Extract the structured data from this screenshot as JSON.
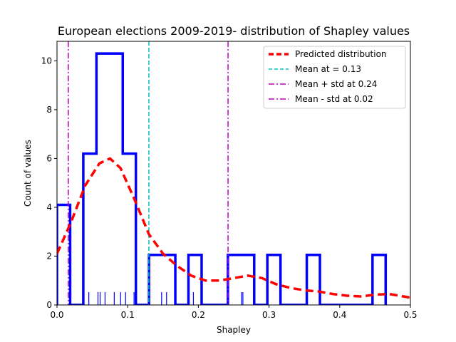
{
  "chart_data": {
    "type": "histogram",
    "title": "European elections 2009-2019- distribution of Shapley values",
    "xlabel": "Shapley",
    "ylabel": "Count of values",
    "xlim": [
      0,
      0.5
    ],
    "ylim": [
      0,
      10.8
    ],
    "xticks": [
      "0.0",
      "0.1",
      "0.2",
      "0.3",
      "0.4",
      "0.5"
    ],
    "yticks": [
      "0",
      "2",
      "4",
      "6",
      "8",
      "10"
    ],
    "histogram": {
      "bin_edges": [
        0.0,
        0.0186,
        0.0372,
        0.0558,
        0.093,
        0.1116,
        0.1302,
        0.1674,
        0.186,
        0.2046,
        0.2418,
        0.279,
        0.2976,
        0.3162,
        0.3534,
        0.372,
        0.4464,
        0.465
      ],
      "counts": [
        4.1,
        0.0,
        6.2,
        10.3,
        6.2,
        0.0,
        2.05,
        0.0,
        2.05,
        0.0,
        2.05,
        0.0,
        2.05,
        0.0,
        2.05,
        0.0,
        2.05
      ],
      "color": "#0000ff"
    },
    "rug": {
      "x": [
        0.045,
        0.058,
        0.061,
        0.068,
        0.081,
        0.09,
        0.097,
        0.109,
        0.148,
        0.155,
        0.193,
        0.261,
        0.263,
        0.298,
        0.372
      ],
      "color": "#0000ff"
    },
    "predicted": {
      "name": "Predicted distribution",
      "x": [
        0.0,
        0.02,
        0.04,
        0.06,
        0.075,
        0.09,
        0.11,
        0.13,
        0.15,
        0.17,
        0.19,
        0.21,
        0.23,
        0.25,
        0.27,
        0.29,
        0.31,
        0.33,
        0.35,
        0.37,
        0.39,
        0.41,
        0.43,
        0.45,
        0.47,
        0.5
      ],
      "y": [
        2.1,
        3.4,
        4.9,
        5.8,
        6.0,
        5.6,
        4.3,
        2.9,
        2.1,
        1.6,
        1.2,
        1.0,
        1.0,
        1.1,
        1.2,
        1.1,
        0.85,
        0.7,
        0.6,
        0.55,
        0.45,
        0.38,
        0.35,
        0.42,
        0.45,
        0.3
      ],
      "color": "#ff0000"
    },
    "vlines": [
      {
        "name": "Mean at = 0.13",
        "x": 0.13,
        "color": "#00bfbf",
        "style": "dashed"
      },
      {
        "name": "Mean + std at 0.24",
        "x": 0.242,
        "color": "#bf00bf",
        "style": "dashdot"
      },
      {
        "name": "Mean - std at 0.02",
        "x": 0.016,
        "color": "#bf00bf",
        "style": "dashdot"
      }
    ],
    "legend": "top-right",
    "grid": false
  }
}
